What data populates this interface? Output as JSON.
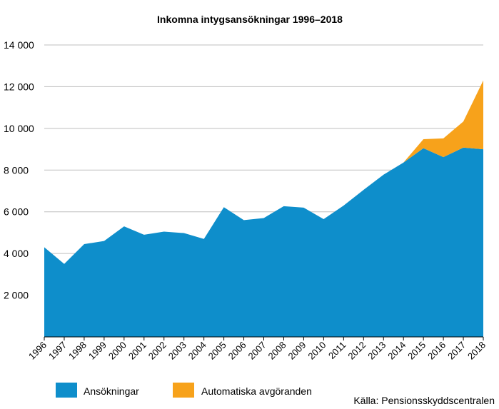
{
  "chart_data": {
    "type": "area",
    "stacked": true,
    "title": "Inkomna intygsansökningar 1996–2018",
    "source": "Källa: Pensionsskyddscentralen",
    "x": [
      "1996",
      "1997",
      "1998",
      "1999",
      "2000",
      "2001",
      "2002",
      "2003",
      "2004",
      "2005",
      "2006",
      "2007",
      "2008",
      "2009",
      "2010",
      "2011",
      "2012",
      "2013",
      "2014",
      "2015",
      "2016",
      "2017",
      "2018"
    ],
    "series": [
      {
        "name": "Ansökningar",
        "color": "#0e8ecb",
        "values": [
          4300,
          3500,
          4450,
          4600,
          5300,
          4900,
          5050,
          4980,
          4700,
          6220,
          5600,
          5700,
          6270,
          6200,
          5650,
          6300,
          7050,
          7780,
          8360,
          9050,
          8620,
          9080,
          9000
        ]
      },
      {
        "name": "Automatiska avgöranden",
        "color": "#f7a21b",
        "values": [
          0,
          0,
          0,
          0,
          0,
          0,
          0,
          0,
          0,
          0,
          0,
          0,
          0,
          0,
          0,
          0,
          0,
          0,
          0,
          430,
          900,
          1250,
          3300
        ]
      }
    ],
    "ylim": [
      0,
      14000
    ],
    "yticks": [
      "2 000",
      "4 000",
      "6 000",
      "8 000",
      "10 000",
      "12 000",
      "14 000"
    ],
    "grid": true,
    "legend_position": "bottom"
  }
}
